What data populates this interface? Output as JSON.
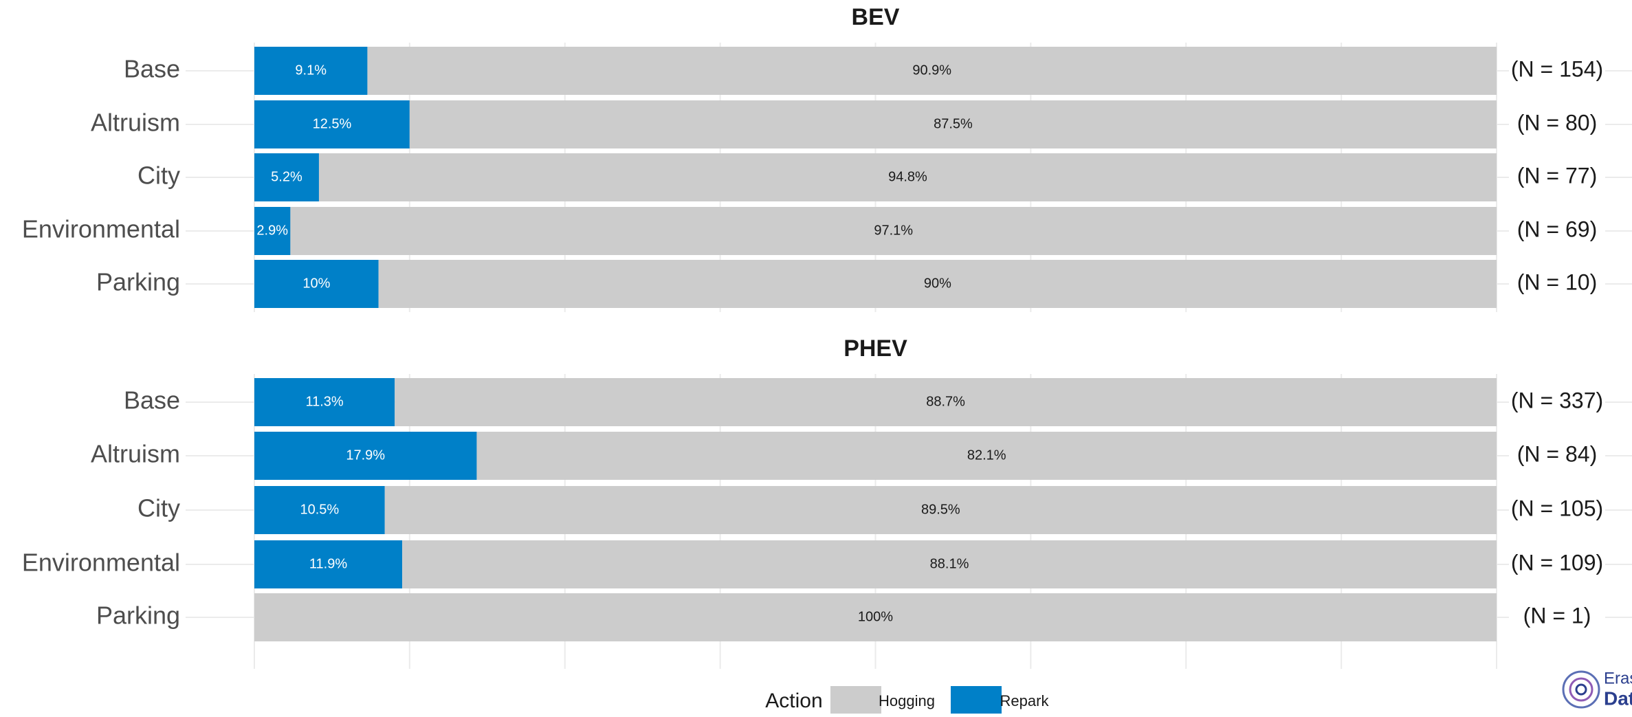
{
  "chart_data": [
    {
      "type": "bar",
      "orientation": "horizontal",
      "stacked": true,
      "title": "BEV",
      "categories": [
        "Base",
        "Altruism",
        "City",
        "Environmental",
        "Parking"
      ],
      "series": [
        {
          "name": "Repark",
          "color": "#0080c8",
          "values": [
            9.1,
            12.5,
            5.2,
            2.9,
            10
          ],
          "value_labels": [
            "9.1%",
            "12.5%",
            "5.2%",
            "2.9%",
            "10%"
          ]
        },
        {
          "name": "Hogging",
          "color": "#cccccc",
          "values": [
            90.9,
            87.5,
            94.8,
            97.1,
            90
          ],
          "value_labels": [
            "90.9%",
            "87.5%",
            "94.8%",
            "97.1%",
            "90%"
          ]
        }
      ],
      "n_labels": [
        "(N = 154)",
        "(N = 80)",
        "(N = 77)",
        "(N = 69)",
        "(N = 10)"
      ],
      "xlim": [
        0,
        100
      ],
      "xticks": [
        0,
        12.5,
        25,
        37.5,
        50,
        62.5,
        75,
        87.5,
        100
      ],
      "grid": true
    },
    {
      "type": "bar",
      "orientation": "horizontal",
      "stacked": true,
      "title": "PHEV",
      "categories": [
        "Base",
        "Altruism",
        "City",
        "Environmental",
        "Parking"
      ],
      "series": [
        {
          "name": "Repark",
          "color": "#0080c8",
          "values": [
            11.3,
            17.9,
            10.5,
            11.9,
            0
          ],
          "value_labels": [
            "11.3%",
            "17.9%",
            "10.5%",
            "11.9%",
            null
          ]
        },
        {
          "name": "Hogging",
          "color": "#cccccc",
          "values": [
            88.7,
            82.1,
            89.5,
            88.1,
            100
          ],
          "value_labels": [
            "88.7%",
            "82.1%",
            "89.5%",
            "88.1%",
            "100%"
          ]
        }
      ],
      "n_labels": [
        "(N = 337)",
        "(N = 84)",
        "(N = 105)",
        "(N = 109)",
        "(N = 1)"
      ],
      "xlim": [
        0,
        100
      ],
      "xticks": [
        0,
        12.5,
        25,
        37.5,
        50,
        62.5,
        75,
        87.5,
        100
      ],
      "grid": true
    }
  ],
  "legend": {
    "title": "Action",
    "position": "bottom"
  },
  "logo": {
    "line1": "Erasm",
    "line2": "Data"
  }
}
